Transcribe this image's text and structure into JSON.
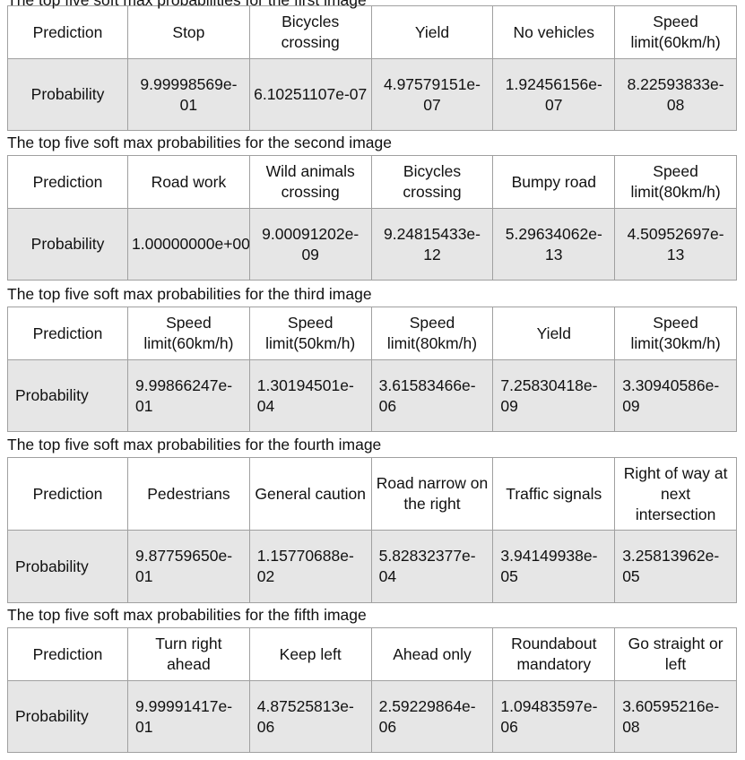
{
  "tables": [
    {
      "caption": "The top five soft max probabilities for the first image",
      "row_labels": {
        "prediction": "Prediction",
        "probability": "Probability"
      },
      "predictions": [
        "Stop",
        "Bicycles crossing",
        "Yield",
        "No vehicles",
        "Speed limit(60km/h)"
      ],
      "probabilities": [
        "9.99998569e-01",
        "6.10251107e-07",
        "4.97579151e-07",
        "1.92456156e-07",
        "8.22593833e-08"
      ]
    },
    {
      "caption": "The top five soft max probabilities for the second image",
      "row_labels": {
        "prediction": "Prediction",
        "probability": "Probability"
      },
      "predictions": [
        "Road work",
        "Wild animals crossing",
        "Bicycles crossing",
        "Bumpy road",
        "Speed limit(80km/h)"
      ],
      "probabilities": [
        "1.00000000e+00",
        "9.00091202e-09",
        "9.24815433e-12",
        "5.29634062e-13",
        "4.50952697e-13"
      ]
    },
    {
      "caption": "The top five soft max probabilities for the third image",
      "row_labels": {
        "prediction": "Prediction",
        "probability": "Probability"
      },
      "predictions": [
        "Speed limit(60km/h)",
        "Speed limit(50km/h)",
        "Speed limit(80km/h)",
        "Yield",
        "Speed limit(30km/h)"
      ],
      "probabilities": [
        "9.99866247e-01",
        "1.30194501e-04",
        "3.61583466e-06",
        "7.25830418e-09",
        "3.30940586e-09"
      ]
    },
    {
      "caption": "The top five soft max probabilities for the fourth image",
      "row_labels": {
        "prediction": "Prediction",
        "probability": "Probability"
      },
      "predictions": [
        "Pedestrians",
        "General caution",
        "Road narrow on the right",
        "Traffic signals",
        "Right of way at next intersection"
      ],
      "probabilities": [
        "9.87759650e-01",
        "1.15770688e-02",
        "5.82832377e-04",
        "3.94149938e-05",
        "3.25813962e-05"
      ]
    },
    {
      "caption": "The top five soft max probabilities for the fifth image",
      "row_labels": {
        "prediction": "Prediction",
        "probability": "Probability"
      },
      "predictions": [
        "Turn right ahead",
        "Keep left",
        "Ahead only",
        "Roundabout mandatory",
        "Go straight or left"
      ],
      "probabilities": [
        "9.99991417e-01",
        "4.87525813e-06",
        "2.59229864e-06",
        "1.09483597e-06",
        "3.60595216e-08"
      ]
    }
  ]
}
